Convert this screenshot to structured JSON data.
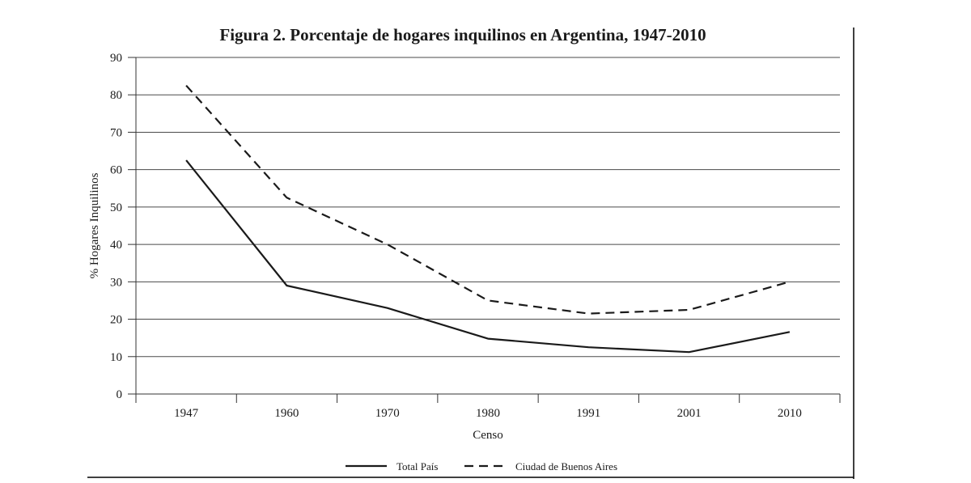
{
  "chart_data": {
    "type": "line",
    "title": "Figura 2. Porcentaje de hogares inquilinos en Argentina, 1947-2010",
    "xlabel": "Censo",
    "ylabel": "% Hogares Inquilinos",
    "categories": [
      "1947",
      "1960",
      "1970",
      "1980",
      "1991",
      "2001",
      "2010"
    ],
    "ylim": [
      0,
      90
    ],
    "yticks": [
      "0",
      "10",
      "20",
      "30",
      "40",
      "50",
      "60",
      "70",
      "80",
      "90"
    ],
    "grid": "horizontal",
    "legend_position": "bottom",
    "series": [
      {
        "name": "Total País",
        "style": "solid",
        "color": "#1a1a1a",
        "values": [
          62.5,
          29,
          23,
          14.8,
          12.5,
          11.2,
          16.6
        ]
      },
      {
        "name": "Ciudad de Buenos Aires",
        "style": "dashed",
        "color": "#1a1a1a",
        "values": [
          82.5,
          52.5,
          40,
          25,
          21.5,
          22.5,
          30
        ]
      }
    ]
  }
}
